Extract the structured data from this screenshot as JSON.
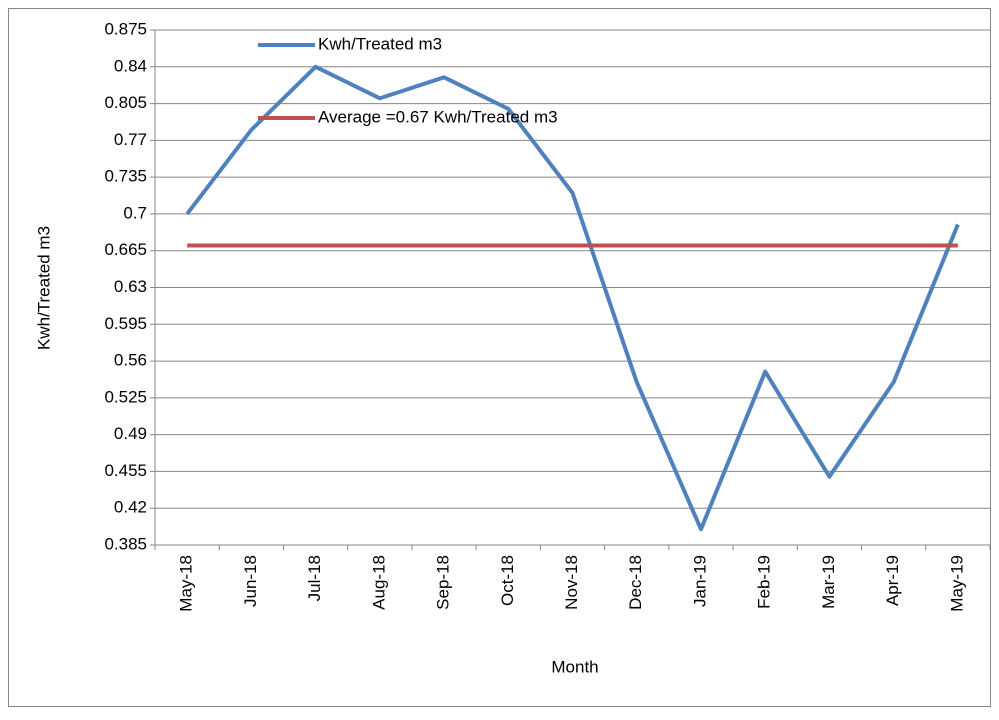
{
  "chart_data": {
    "type": "line",
    "x_label": "Month",
    "y_label": "Kwh/Treated m3",
    "categories": [
      "May-18",
      "Jun-18",
      "Jul-18",
      "Aug-18",
      "Sep-18",
      "Oct-18",
      "Nov-18",
      "Dec-18",
      "Jan-19",
      "Feb-19",
      "Mar-19",
      "Apr-19",
      "May-19"
    ],
    "series": [
      {
        "name": "Kwh/Treated m3",
        "color": "#4f81bd",
        "values": [
          0.7,
          0.78,
          0.84,
          0.81,
          0.83,
          0.8,
          0.72,
          0.54,
          0.4,
          0.55,
          0.45,
          0.54,
          0.69
        ]
      },
      {
        "name": "Average =0.67 Kwh/Treated m3",
        "color": "#c0504d",
        "values": [
          0.67,
          0.67,
          0.67,
          0.67,
          0.67,
          0.67,
          0.67,
          0.67,
          0.67,
          0.67,
          0.67,
          0.67,
          0.67
        ]
      }
    ],
    "ylim": [
      0.385,
      0.875
    ],
    "yticks": [
      0.385,
      0.42,
      0.455,
      0.49,
      0.525,
      0.56,
      0.595,
      0.63,
      0.665,
      0.7,
      0.735,
      0.77,
      0.805,
      0.84,
      0.875
    ],
    "grid": true,
    "legend": "top-left"
  }
}
